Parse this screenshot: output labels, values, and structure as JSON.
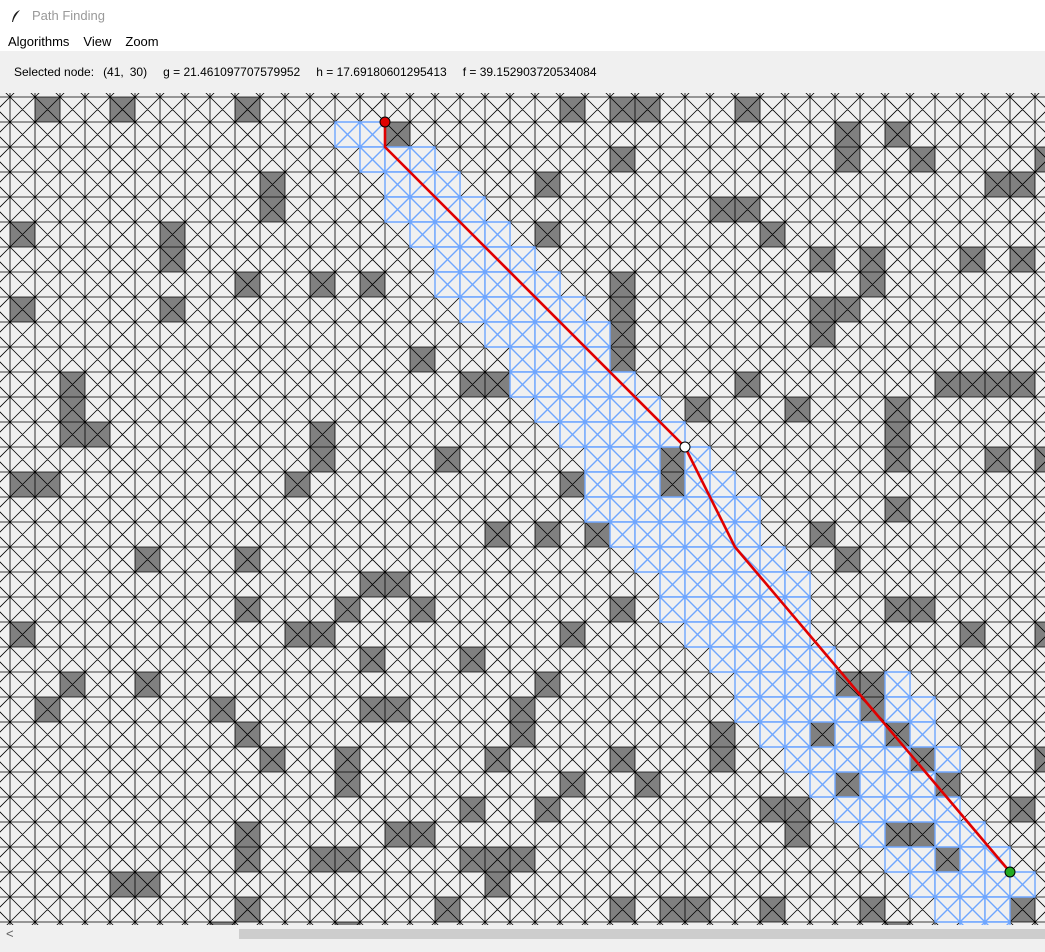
{
  "window": {
    "title": "Path Finding",
    "icon": "feather-icon"
  },
  "menu": {
    "items": [
      "Algorithms",
      "View",
      "Zoom"
    ]
  },
  "status": {
    "selected_label": "Selected node:",
    "selected_x": "(41,",
    "selected_y": "30)",
    "g_text": "g = 21.461097707579952",
    "h_text": "h = 17.69180601295413",
    "f_text": "f = 39.152903720534084"
  },
  "grid": {
    "cols": 42,
    "rows": 33,
    "first_col": 16,
    "first_row": 26,
    "colors": {
      "background": "#f0f0f0",
      "cell_line": "#000000",
      "wall": "#808080",
      "explored": "#6ea6ff",
      "path": "#e00000",
      "start": "#e00000",
      "goal": "#22aa22",
      "selected": "#ffffff"
    },
    "walls": [
      [
        1,
        0
      ],
      [
        4,
        0
      ],
      [
        9,
        0
      ],
      [
        22,
        0
      ],
      [
        24,
        0
      ],
      [
        25,
        0
      ],
      [
        29,
        0
      ],
      [
        15,
        1
      ],
      [
        33,
        1
      ],
      [
        35,
        1
      ],
      [
        24,
        2
      ],
      [
        33,
        2
      ],
      [
        36,
        2
      ],
      [
        41,
        2
      ],
      [
        21,
        3
      ],
      [
        10,
        3
      ],
      [
        10,
        4
      ],
      [
        39,
        3
      ],
      [
        40,
        3
      ],
      [
        28,
        4
      ],
      [
        29,
        4
      ],
      [
        0,
        5
      ],
      [
        6,
        5
      ],
      [
        21,
        5
      ],
      [
        30,
        5
      ],
      [
        6,
        6
      ],
      [
        32,
        6
      ],
      [
        34,
        6
      ],
      [
        38,
        6
      ],
      [
        40,
        6
      ],
      [
        9,
        7
      ],
      [
        12,
        7
      ],
      [
        14,
        7
      ],
      [
        24,
        7
      ],
      [
        34,
        7
      ],
      [
        0,
        8
      ],
      [
        6,
        8
      ],
      [
        24,
        8
      ],
      [
        32,
        8
      ],
      [
        33,
        8
      ],
      [
        24,
        9
      ],
      [
        32,
        9
      ],
      [
        16,
        10
      ],
      [
        24,
        10
      ],
      [
        2,
        11
      ],
      [
        18,
        11
      ],
      [
        19,
        11
      ],
      [
        29,
        11
      ],
      [
        37,
        11
      ],
      [
        38,
        11
      ],
      [
        39,
        11
      ],
      [
        40,
        11
      ],
      [
        2,
        12
      ],
      [
        27,
        12
      ],
      [
        31,
        12
      ],
      [
        35,
        12
      ],
      [
        2,
        13
      ],
      [
        3,
        13
      ],
      [
        12,
        13
      ],
      [
        12,
        14
      ],
      [
        35,
        13
      ],
      [
        35,
        14
      ],
      [
        17,
        14
      ],
      [
        26,
        14
      ],
      [
        39,
        14
      ],
      [
        41,
        14
      ],
      [
        0,
        15
      ],
      [
        1,
        15
      ],
      [
        22,
        15
      ],
      [
        11,
        15
      ],
      [
        26,
        15
      ],
      [
        35,
        16
      ],
      [
        19,
        17
      ],
      [
        21,
        17
      ],
      [
        23,
        17
      ],
      [
        32,
        17
      ],
      [
        5,
        18
      ],
      [
        9,
        18
      ],
      [
        33,
        18
      ],
      [
        14,
        19
      ],
      [
        15,
        19
      ],
      [
        26,
        19
      ],
      [
        9,
        20
      ],
      [
        13,
        20
      ],
      [
        16,
        20
      ],
      [
        24,
        20
      ],
      [
        35,
        20
      ],
      [
        36,
        20
      ],
      [
        11,
        21
      ],
      [
        12,
        21
      ],
      [
        38,
        21
      ],
      [
        41,
        21
      ],
      [
        0,
        21
      ],
      [
        22,
        21
      ],
      [
        14,
        22
      ],
      [
        18,
        22
      ],
      [
        2,
        23
      ],
      [
        5,
        23
      ],
      [
        21,
        23
      ],
      [
        33,
        23
      ],
      [
        34,
        23
      ],
      [
        1,
        24
      ],
      [
        8,
        24
      ],
      [
        14,
        24
      ],
      [
        15,
        24
      ],
      [
        20,
        24
      ],
      [
        34,
        24
      ],
      [
        9,
        25
      ],
      [
        20,
        25
      ],
      [
        28,
        25
      ],
      [
        32,
        25
      ],
      [
        35,
        25
      ],
      [
        10,
        26
      ],
      [
        13,
        26
      ],
      [
        19,
        26
      ],
      [
        24,
        26
      ],
      [
        28,
        26
      ],
      [
        36,
        26
      ],
      [
        41,
        26
      ],
      [
        13,
        27
      ],
      [
        22,
        27
      ],
      [
        25,
        27
      ],
      [
        33,
        27
      ],
      [
        37,
        27
      ],
      [
        18,
        28
      ],
      [
        21,
        28
      ],
      [
        30,
        28
      ],
      [
        31,
        28
      ],
      [
        40,
        28
      ],
      [
        9,
        29
      ],
      [
        15,
        29
      ],
      [
        16,
        29
      ],
      [
        31,
        29
      ],
      [
        35,
        29
      ],
      [
        36,
        29
      ],
      [
        9,
        30
      ],
      [
        12,
        30
      ],
      [
        13,
        30
      ],
      [
        18,
        30
      ],
      [
        19,
        30
      ],
      [
        20,
        30
      ],
      [
        37,
        30
      ],
      [
        4,
        31
      ],
      [
        5,
        31
      ],
      [
        19,
        31
      ],
      [
        40,
        31
      ],
      [
        9,
        32
      ],
      [
        17,
        32
      ],
      [
        24,
        32
      ],
      [
        26,
        32
      ],
      [
        27,
        32
      ],
      [
        30,
        32
      ],
      [
        34,
        32
      ],
      [
        40,
        32
      ],
      [
        8,
        33
      ],
      [
        13,
        33
      ],
      [
        35,
        33
      ]
    ],
    "explored": [
      [
        13,
        1
      ],
      [
        14,
        1
      ],
      [
        14,
        2
      ],
      [
        15,
        2
      ],
      [
        16,
        2
      ],
      [
        15,
        3
      ],
      [
        16,
        3
      ],
      [
        17,
        3
      ],
      [
        15,
        4
      ],
      [
        16,
        4
      ],
      [
        17,
        4
      ],
      [
        18,
        4
      ],
      [
        16,
        5
      ],
      [
        17,
        5
      ],
      [
        18,
        5
      ],
      [
        19,
        5
      ],
      [
        17,
        6
      ],
      [
        18,
        6
      ],
      [
        19,
        6
      ],
      [
        20,
        6
      ],
      [
        17,
        7
      ],
      [
        18,
        7
      ],
      [
        19,
        7
      ],
      [
        20,
        7
      ],
      [
        21,
        7
      ],
      [
        18,
        8
      ],
      [
        19,
        8
      ],
      [
        20,
        8
      ],
      [
        21,
        8
      ],
      [
        22,
        8
      ],
      [
        19,
        9
      ],
      [
        20,
        9
      ],
      [
        21,
        9
      ],
      [
        22,
        9
      ],
      [
        23,
        9
      ],
      [
        20,
        10
      ],
      [
        21,
        10
      ],
      [
        22,
        10
      ],
      [
        23,
        10
      ],
      [
        20,
        11
      ],
      [
        21,
        11
      ],
      [
        22,
        11
      ],
      [
        23,
        11
      ],
      [
        24,
        11
      ],
      [
        21,
        12
      ],
      [
        22,
        12
      ],
      [
        23,
        12
      ],
      [
        24,
        12
      ],
      [
        25,
        12
      ],
      [
        22,
        13
      ],
      [
        23,
        13
      ],
      [
        24,
        13
      ],
      [
        25,
        13
      ],
      [
        26,
        13
      ],
      [
        23,
        14
      ],
      [
        24,
        14
      ],
      [
        25,
        14
      ],
      [
        27,
        14
      ],
      [
        23,
        15
      ],
      [
        24,
        15
      ],
      [
        25,
        15
      ],
      [
        27,
        15
      ],
      [
        28,
        15
      ],
      [
        23,
        16
      ],
      [
        24,
        16
      ],
      [
        25,
        16
      ],
      [
        26,
        16
      ],
      [
        27,
        16
      ],
      [
        28,
        16
      ],
      [
        29,
        16
      ],
      [
        24,
        17
      ],
      [
        25,
        17
      ],
      [
        26,
        17
      ],
      [
        27,
        17
      ],
      [
        28,
        17
      ],
      [
        29,
        17
      ],
      [
        25,
        18
      ],
      [
        26,
        18
      ],
      [
        27,
        18
      ],
      [
        28,
        18
      ],
      [
        29,
        18
      ],
      [
        30,
        18
      ],
      [
        26,
        19
      ],
      [
        27,
        19
      ],
      [
        28,
        19
      ],
      [
        29,
        19
      ],
      [
        30,
        19
      ],
      [
        31,
        19
      ],
      [
        26,
        20
      ],
      [
        27,
        20
      ],
      [
        28,
        20
      ],
      [
        29,
        20
      ],
      [
        30,
        20
      ],
      [
        31,
        20
      ],
      [
        27,
        21
      ],
      [
        28,
        21
      ],
      [
        29,
        21
      ],
      [
        30,
        21
      ],
      [
        31,
        21
      ],
      [
        28,
        22
      ],
      [
        29,
        22
      ],
      [
        30,
        22
      ],
      [
        31,
        22
      ],
      [
        32,
        22
      ],
      [
        29,
        23
      ],
      [
        30,
        23
      ],
      [
        31,
        23
      ],
      [
        32,
        23
      ],
      [
        35,
        23
      ],
      [
        29,
        24
      ],
      [
        30,
        24
      ],
      [
        31,
        24
      ],
      [
        32,
        24
      ],
      [
        33,
        24
      ],
      [
        35,
        24
      ],
      [
        36,
        24
      ],
      [
        30,
        25
      ],
      [
        31,
        25
      ],
      [
        33,
        25
      ],
      [
        34,
        25
      ],
      [
        36,
        25
      ],
      [
        31,
        26
      ],
      [
        32,
        26
      ],
      [
        33,
        26
      ],
      [
        34,
        26
      ],
      [
        35,
        26
      ],
      [
        37,
        26
      ],
      [
        32,
        27
      ],
      [
        34,
        27
      ],
      [
        35,
        27
      ],
      [
        36,
        27
      ],
      [
        33,
        28
      ],
      [
        34,
        28
      ],
      [
        35,
        28
      ],
      [
        36,
        28
      ],
      [
        37,
        28
      ],
      [
        34,
        29
      ],
      [
        37,
        29
      ],
      [
        38,
        29
      ],
      [
        35,
        30
      ],
      [
        36,
        30
      ],
      [
        38,
        30
      ],
      [
        39,
        30
      ],
      [
        36,
        31
      ],
      [
        37,
        31
      ],
      [
        38,
        31
      ],
      [
        39,
        31
      ],
      [
        40,
        31
      ],
      [
        37,
        32
      ],
      [
        38,
        32
      ],
      [
        39,
        32
      ],
      [
        38,
        33
      ],
      [
        39,
        33
      ]
    ],
    "path": [
      [
        14,
        1
      ],
      [
        14,
        2
      ],
      [
        26,
        14
      ],
      [
        28,
        18
      ],
      [
        39,
        31
      ]
    ],
    "start": [
      14,
      1
    ],
    "goal": [
      39,
      31
    ],
    "selected": [
      26,
      14
    ]
  }
}
